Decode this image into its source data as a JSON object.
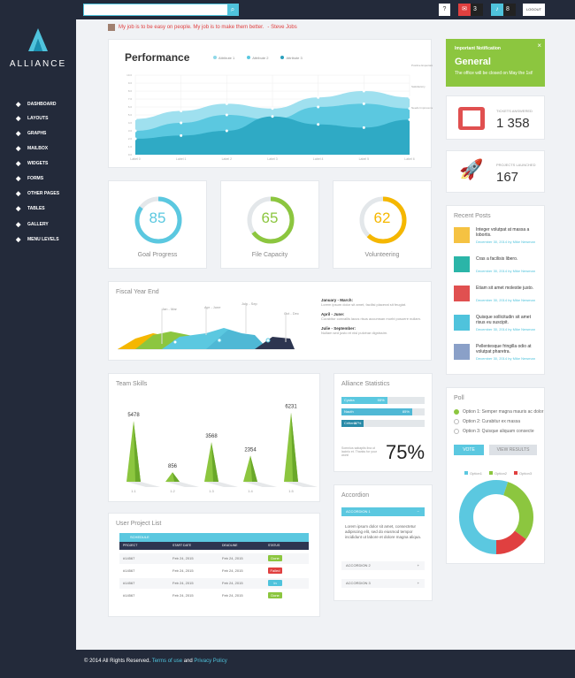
{
  "topbar": {
    "search_placeholder": "",
    "help": "?",
    "mail_count": "3",
    "alert_count": "8",
    "logout": "LOGOUT"
  },
  "brand": {
    "name": "ALLIANCE"
  },
  "nav": [
    {
      "label": "DASHBOARD",
      "icon": "rocket-icon"
    },
    {
      "label": "LAYOUTS",
      "icon": "layers-icon"
    },
    {
      "label": "GRAPHS",
      "icon": "chart-icon"
    },
    {
      "label": "MAILBOX",
      "icon": "inbox-icon"
    },
    {
      "label": "WIDGETS",
      "icon": "pin-icon"
    },
    {
      "label": "FORMS",
      "icon": "car-icon"
    },
    {
      "label": "OTHER PAGES",
      "icon": "gear-icon"
    },
    {
      "label": "TABLES",
      "icon": "triangle-icon"
    },
    {
      "label": "GALLERY",
      "icon": "anchor-icon"
    },
    {
      "label": "MENU LEVELS",
      "icon": "puzzle-icon"
    }
  ],
  "quote": {
    "text": "My job is to be easy on people. My job is to make them better.",
    "author": "- Steve Jobs"
  },
  "performance": {
    "title": "Performance",
    "legend": [
      "Attribute 1",
      "Attribute 2",
      "Attribute 3"
    ],
    "labels_right": [
      "Positive Expectations",
      "Satisfactory",
      "Needs Improvement"
    ],
    "x_labels": [
      "Label 0",
      "Label 1",
      "Label 2",
      "Label 3",
      "Label 4",
      "Label 5",
      "Label 6"
    ],
    "y_labels": [
      "10.0",
      "9.0",
      "8.0",
      "7.0",
      "6.0",
      "5.0",
      "4.0",
      "3.0",
      "2.0",
      "1.0",
      "0.0"
    ]
  },
  "donuts": [
    {
      "value": "85",
      "label": "Goal Progress",
      "pct": 0.85,
      "color": "#5bc8e0"
    },
    {
      "value": "65",
      "label": "File Capacity",
      "pct": 0.65,
      "color": "#8cc63f"
    },
    {
      "value": "62",
      "label": "Volunteering",
      "pct": 0.62,
      "color": "#f5b700"
    }
  ],
  "fiscal": {
    "title": "Fiscal Year End",
    "labels": [
      "Jan - Mar",
      "Apr - June",
      "July - Sep",
      "Oct - Dec"
    ],
    "entries": [
      {
        "head": "January - March:",
        "body": "Lorem ipsum dolor sit amet, facilisi placerat sit feugiat."
      },
      {
        "head": "April - June:",
        "body": "Curabitur convallis lacus risus accumsan morbi posuere nullam."
      },
      {
        "head": "Julie - September:",
        "body": "Nullam sed justo et nisl pulvinar dignissim."
      }
    ]
  },
  "notification": {
    "header": "Important Notification",
    "title": "General",
    "text": "The office will be closed on May the 1st!",
    "close": "×"
  },
  "tickets": {
    "label": "TICKETS ANSWERED",
    "value": "1 358"
  },
  "projects": {
    "label": "PROJECTS LAUNCHED",
    "value": "167"
  },
  "recent": {
    "title": "Recent Posts",
    "items": [
      {
        "title": "Integer volutpat at massa a lobortis.",
        "meta": "December 30, 2014 by Mike Newman",
        "color": "#f5c242"
      },
      {
        "title": "Cras a facilisis libero.",
        "meta": "December 30, 2014 by Mike Newman",
        "color": "#2bb5a8"
      },
      {
        "title": "Etiam sit amet molestie justo.",
        "meta": "December 30, 2014 by Mike Newman",
        "color": "#e05050"
      },
      {
        "title": "Quisque sollicitudin sit amet risus eu suscipit.",
        "meta": "December 30, 2014 by Mike Newman",
        "color": "#4fc3dc"
      },
      {
        "title": "Pellentesque fringilla odio at volutpat pharetra.",
        "meta": "December 30, 2014 by Mike Newman",
        "color": "#8aa0c8"
      }
    ]
  },
  "team": {
    "title": "Team Skills",
    "values": [
      "5478",
      "856",
      "3568",
      "2354",
      "6231"
    ],
    "xlabels": [
      "1.1",
      "1.2",
      "1.3",
      "1.4",
      "1.5"
    ]
  },
  "chart_data": {
    "type": "bar",
    "categories": [
      "1.1",
      "1.2",
      "1.3",
      "1.4",
      "1.5"
    ],
    "values": [
      5478,
      856,
      3568,
      2354,
      6231
    ],
    "title": "Team Skills",
    "ylim": [
      0,
      7000
    ]
  },
  "stats": {
    "title": "Alliance Statistics",
    "bars": [
      {
        "label": "Cystra",
        "value": "55%",
        "pct": 0.55,
        "color": "#5bc8e0"
      },
      {
        "label": "Nauth",
        "value": "85%",
        "pct": 0.85,
        "color": "#4fb8d5"
      },
      {
        "label": "Critteria",
        "value": "27%",
        "pct": 0.27,
        "color": "#2a8ba8"
      }
    ],
    "note": "Somnius sabaptis lina ut lacinio et. Thanks for your work!",
    "big": "75%"
  },
  "poll": {
    "title": "Poll",
    "options": [
      "Option 1: Semper magna mauris ac dolor",
      "Option 2: Curabitur ex massa",
      "Option 3: Quisque aliquam consecte"
    ],
    "vote": "VOTE",
    "results": "VIEW RESULTS",
    "legend": [
      "Option1",
      "Option2",
      "Option3"
    ],
    "values": [
      55,
      30,
      15
    ]
  },
  "accordion": {
    "title": "Accordion",
    "items": [
      "ACCORDION 1",
      "ACCORDION 2",
      "ACCORDION 3"
    ],
    "body": "Lorem ipsum dolor sit amet, consectetur adipiscing elit, sed do eiusmod tempor incididunt ut labore et dolore magna aliqua."
  },
  "projectlist": {
    "title": "User Project List",
    "header": "SCHEDULE",
    "cols": [
      "PROJECT",
      "START DATE",
      "DEADLINE",
      "STATUS"
    ],
    "rows": [
      {
        "project": "#14567",
        "start": "Feb 24, 2015",
        "deadline": "Feb 24, 2015",
        "status": "Done",
        "color": "#8cc63f"
      },
      {
        "project": "#14567",
        "start": "Feb 24, 2015",
        "deadline": "Feb 24, 2015",
        "status": "Failed",
        "color": "#e04040"
      },
      {
        "project": "#14567",
        "start": "Feb 24, 2015",
        "deadline": "Feb 24, 2015",
        "status": "In Process",
        "color": "#4fc3dc"
      },
      {
        "project": "#14567",
        "start": "Feb 24, 2015",
        "deadline": "Feb 24, 2015",
        "status": "Done",
        "color": "#8cc63f"
      }
    ]
  },
  "footer": {
    "copyright": "© 2014 All Rights Reserved.",
    "terms": "Terms of use",
    "and": "and",
    "privacy": "Privacy Policy"
  }
}
